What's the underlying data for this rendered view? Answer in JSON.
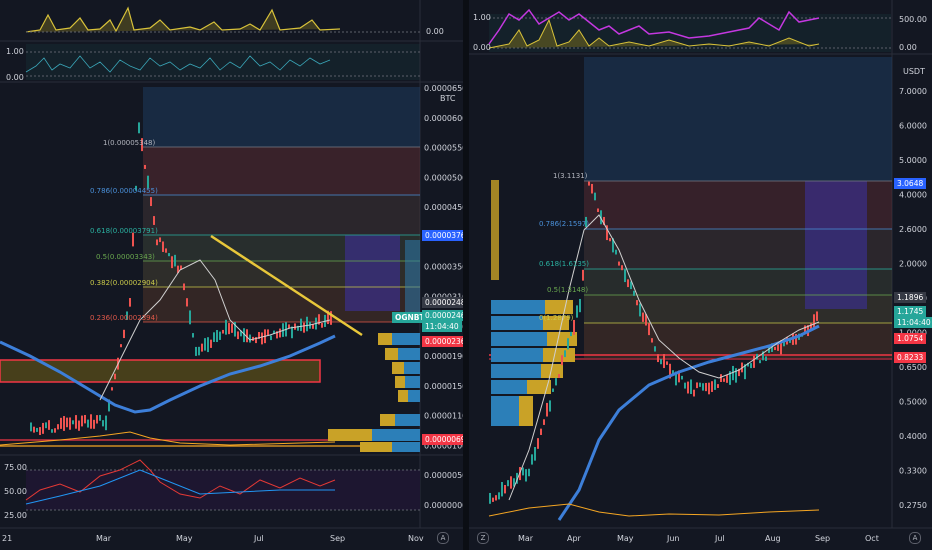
{
  "left": {
    "symbol_tag": "OGNBTC",
    "unit": "BTC",
    "price_labels": [
      "0.00006500",
      "0.00006000",
      "0.00005500",
      "0.00005000",
      "0.00004500",
      "0.00004000",
      "0.00003500",
      "0.00003100",
      "0.00002500",
      "0.00001900",
      "0.00001500",
      "0.00001100",
      "0.00001000",
      "0.00000500",
      "0.00000000"
    ],
    "tags": {
      "fib_top": "0.00003767",
      "level1": "0.00002483",
      "last": "0.00002463",
      "countdown": "11:04:40",
      "support": "0.00002368",
      "low": "0.00000697"
    },
    "fib_labels": [
      "1(0.00005348)",
      "0.786(0.00004455)",
      "0.618(0.00003791)",
      "0.5(0.00003343)",
      "0.382(0.00002904)",
      "0.236(0.00002394)"
    ],
    "top_ind_labels": [
      "0.00"
    ],
    "osc_labels": [
      "1.00",
      "0.00"
    ],
    "rsi_labels": [
      "75.00",
      "50.00",
      "25.00"
    ],
    "time_labels": [
      "21",
      "Mar",
      "May",
      "Jul",
      "Sep",
      "Nov"
    ],
    "auto_button": "A"
  },
  "right": {
    "unit": "USDT",
    "price_labels": [
      "7.0000",
      "6.0000",
      "5.0000",
      "4.0000",
      "2.6000",
      "2.0000",
      "1.6000",
      "1.0000",
      "0.6500",
      "0.5000",
      "0.4000",
      "0.3300",
      "0.2750"
    ],
    "tags": {
      "fib_top": "3.0648",
      "level1": "1.1896",
      "last": "1.1745",
      "countdown": "11:04:40",
      "level2": "1.0754",
      "support": "0.8233"
    },
    "fib_labels": [
      "1(3.1131)",
      "0.786(2.1597)",
      "0.618(1.6135)",
      "0.5(1.3148)",
      "0(1.2879)"
    ],
    "top_ind_labels": [
      "1.00",
      "0.00",
      "500.00",
      "0.00"
    ],
    "time_labels": [
      "Mar",
      "Apr",
      "May",
      "Jun",
      "Jul",
      "Aug",
      "Sep",
      "Oct"
    ],
    "auto_button": "A",
    "log_button": "Z"
  }
}
